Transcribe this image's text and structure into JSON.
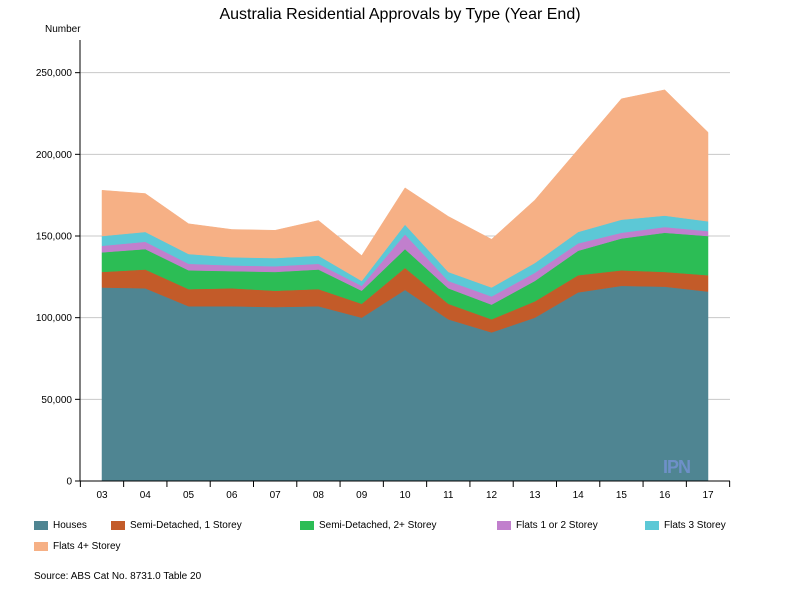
{
  "chart_data": {
    "type": "area",
    "stacked": true,
    "title": "Australia Residential Approvals by Type (Year End)",
    "ylabel": "Number",
    "xlabel": "",
    "ylim": [
      0,
      270000
    ],
    "yticks": [
      0,
      50000,
      100000,
      150000,
      200000,
      250000
    ],
    "ytick_labels": [
      "0",
      "50,000",
      "100,000",
      "150,000",
      "200,000",
      "250,000"
    ],
    "categories": [
      "03",
      "04",
      "05",
      "06",
      "07",
      "08",
      "09",
      "10",
      "11",
      "12",
      "13",
      "14",
      "15",
      "16",
      "17"
    ],
    "series": [
      {
        "name": "Houses",
        "color": "#4f8592",
        "values": [
          118500,
          118000,
          107000,
          107000,
          106500,
          107000,
          100000,
          117000,
          99000,
          91000,
          100000,
          115500,
          119500,
          119000,
          116000
        ]
      },
      {
        "name": "Semi-Detached, 1 Storey",
        "color": "#c35b29",
        "values": [
          9500,
          11500,
          10500,
          11000,
          10000,
          10500,
          8500,
          13500,
          9500,
          8000,
          10000,
          10500,
          9500,
          9000,
          10000
        ]
      },
      {
        "name": "Semi-Detached, 2+ Storey",
        "color": "#2cbd55",
        "values": [
          12000,
          12500,
          11500,
          10500,
          11500,
          12000,
          8000,
          11500,
          9500,
          9000,
          12500,
          15000,
          19500,
          24000,
          24000
        ]
      },
      {
        "name": "Flats 1 or 2 Storey",
        "color": "#c17fcd",
        "values": [
          4000,
          4500,
          4000,
          3500,
          3500,
          3500,
          3000,
          9000,
          4500,
          5000,
          5000,
          4500,
          3500,
          3500,
          3000
        ]
      },
      {
        "name": "Flats 3 Storey",
        "color": "#5cc8d6",
        "values": [
          6000,
          6000,
          6000,
          5000,
          5000,
          5000,
          3000,
          6000,
          5500,
          5500,
          6000,
          7000,
          8000,
          7000,
          6000
        ]
      },
      {
        "name": "Flats 4+ Storey",
        "color": "#f6b085",
        "values": [
          28000,
          23500,
          18500,
          17000,
          17000,
          21500,
          15500,
          22500,
          34000,
          29500,
          38500,
          50500,
          74000,
          77000,
          54500
        ]
      }
    ]
  },
  "legend_label": "Houses",
  "source_text": "Source: ABS Cat No. 8731.0 Table 20",
  "watermark_text": "IPN"
}
